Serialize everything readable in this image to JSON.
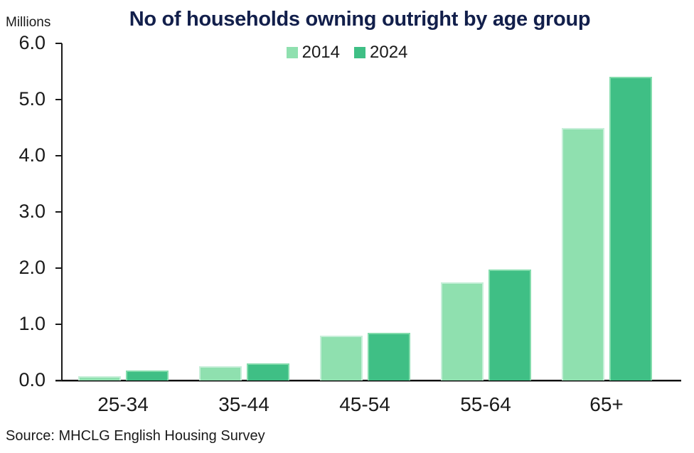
{
  "source": "Source: MHCLG English Housing Survey",
  "colors": {
    "title": "#121F4B",
    "text": "#1A1A1A",
    "axis": "#000000",
    "background": "#FFFFFF"
  },
  "chart_data": {
    "type": "bar",
    "title": "No of households owning outright by age group",
    "ylabel": "Millions",
    "xlabel": "",
    "categories": [
      "25-34",
      "35-44",
      "45-54",
      "55-64",
      "65+"
    ],
    "series": [
      {
        "name": "2014",
        "color": "#8FE0AF",
        "edge_color": "#C7EFD9",
        "values": [
          0.08,
          0.25,
          0.8,
          1.75,
          4.5
        ]
      },
      {
        "name": "2024",
        "color": "#3FBF85",
        "edge_color": "#83DCAC",
        "values": [
          0.18,
          0.3,
          0.85,
          1.97,
          5.4
        ]
      }
    ],
    "ylim": [
      0,
      6
    ],
    "yticks": [
      "0.0",
      "1.0",
      "2.0",
      "3.0",
      "4.0",
      "5.0",
      "6.0"
    ],
    "grid": false,
    "legend_position": "top-center"
  }
}
